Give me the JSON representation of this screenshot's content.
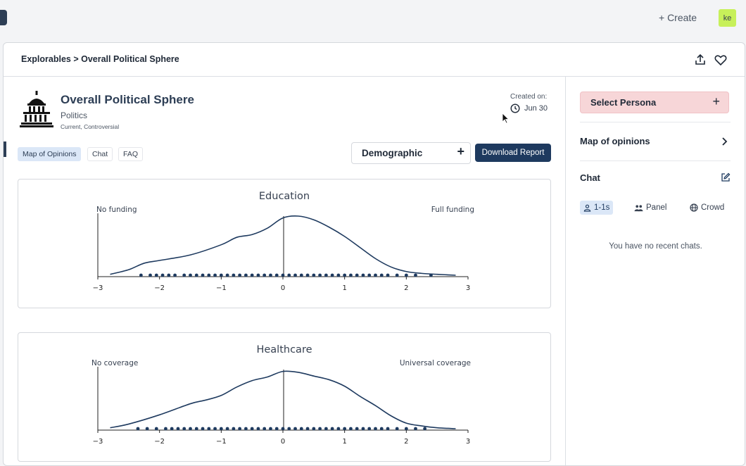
{
  "topbar": {
    "create_label": "+ Create",
    "avatar_initials": "ke"
  },
  "header": {
    "breadcrumb": "Explorables > Overall Political Sphere"
  },
  "topic": {
    "title": "Overall Political Sphere",
    "category": "Politics",
    "tags": "Current, Controversial",
    "created_label": "Created on:",
    "created_date": "Jun 30"
  },
  "tabs": [
    {
      "label": "Map of Opinions",
      "active": true
    },
    {
      "label": "Chat",
      "active": false
    },
    {
      "label": "FAQ",
      "active": false
    }
  ],
  "demographic_select": {
    "label": "Demographic"
  },
  "download_label": "Download Report",
  "chart_data": [
    {
      "type": "area",
      "title": "Education",
      "left_label": "No funding",
      "right_label": "Full funding",
      "xlim": [
        -3,
        3
      ],
      "xticks": [
        "−3",
        "−2",
        "−1",
        "0",
        "1",
        "2",
        "3"
      ],
      "density": {
        "x": [
          -2.8,
          -2.5,
          -2.25,
          -2.0,
          -1.5,
          -1.0,
          -0.75,
          -0.5,
          -0.25,
          0.0,
          0.25,
          0.5,
          0.75,
          1.0,
          1.25,
          1.5,
          1.75,
          2.0,
          2.25,
          2.5,
          2.8
        ],
        "y": [
          0.01,
          0.06,
          0.13,
          0.16,
          0.22,
          0.33,
          0.41,
          0.44,
          0.51,
          0.62,
          0.64,
          0.6,
          0.52,
          0.42,
          0.3,
          0.18,
          0.09,
          0.04,
          0.02,
          0.01,
          0.0
        ]
      },
      "rug": {
        "x": [
          -2.3,
          -2.15,
          -2.05,
          -1.95,
          -1.85,
          -1.75,
          -1.6,
          -1.5,
          -1.4,
          -1.3,
          -1.2,
          -1.1,
          -1.0,
          -0.9,
          -0.8,
          -0.7,
          -0.6,
          -0.5,
          -0.4,
          -0.3,
          -0.2,
          -0.1,
          0.0,
          0.1,
          0.2,
          0.3,
          0.4,
          0.5,
          0.6,
          0.7,
          0.8,
          0.9,
          1.0,
          1.1,
          1.2,
          1.3,
          1.4,
          1.5,
          1.6,
          1.7,
          1.85,
          2.0,
          2.15,
          2.4
        ]
      }
    },
    {
      "type": "area",
      "title": "Healthcare",
      "left_label": "No coverage",
      "right_label": "Universal coverage",
      "xlim": [
        -3,
        3
      ],
      "xticks": [
        "−3",
        "−2",
        "−1",
        "0",
        "1",
        "2",
        "3"
      ],
      "density": {
        "x": [
          -2.8,
          -2.5,
          -2.0,
          -1.5,
          -1.25,
          -1.0,
          -0.75,
          -0.5,
          -0.25,
          0.0,
          0.25,
          0.5,
          0.75,
          1.0,
          1.25,
          1.5,
          1.75,
          2.0,
          2.25,
          2.5,
          2.8
        ],
        "y": [
          0.01,
          0.05,
          0.15,
          0.27,
          0.31,
          0.36,
          0.45,
          0.52,
          0.56,
          0.62,
          0.61,
          0.57,
          0.53,
          0.46,
          0.35,
          0.25,
          0.14,
          0.06,
          0.03,
          0.01,
          0.0
        ]
      },
      "rug": {
        "x": [
          -2.35,
          -2.2,
          -2.05,
          -1.9,
          -1.8,
          -1.7,
          -1.6,
          -1.5,
          -1.4,
          -1.3,
          -1.2,
          -1.1,
          -1.0,
          -0.9,
          -0.8,
          -0.7,
          -0.6,
          -0.5,
          -0.4,
          -0.3,
          -0.2,
          -0.1,
          0.0,
          0.1,
          0.2,
          0.3,
          0.4,
          0.5,
          0.6,
          0.7,
          0.8,
          0.9,
          1.0,
          1.1,
          1.2,
          1.3,
          1.4,
          1.5,
          1.6,
          1.7,
          1.85,
          2.0,
          2.15,
          2.3
        ]
      }
    }
  ],
  "sidebar": {
    "select_persona": "Select Persona",
    "map_of_opinions": "Map of opinions",
    "chat_title": "Chat",
    "chat_tabs": [
      {
        "label": "1-1s",
        "icon": "person-icon",
        "active": true
      },
      {
        "label": "Panel",
        "icon": "group-icon",
        "active": false
      },
      {
        "label": "Crowd",
        "icon": "globe-icon",
        "active": false
      }
    ],
    "empty_message": "You have no recent chats."
  }
}
